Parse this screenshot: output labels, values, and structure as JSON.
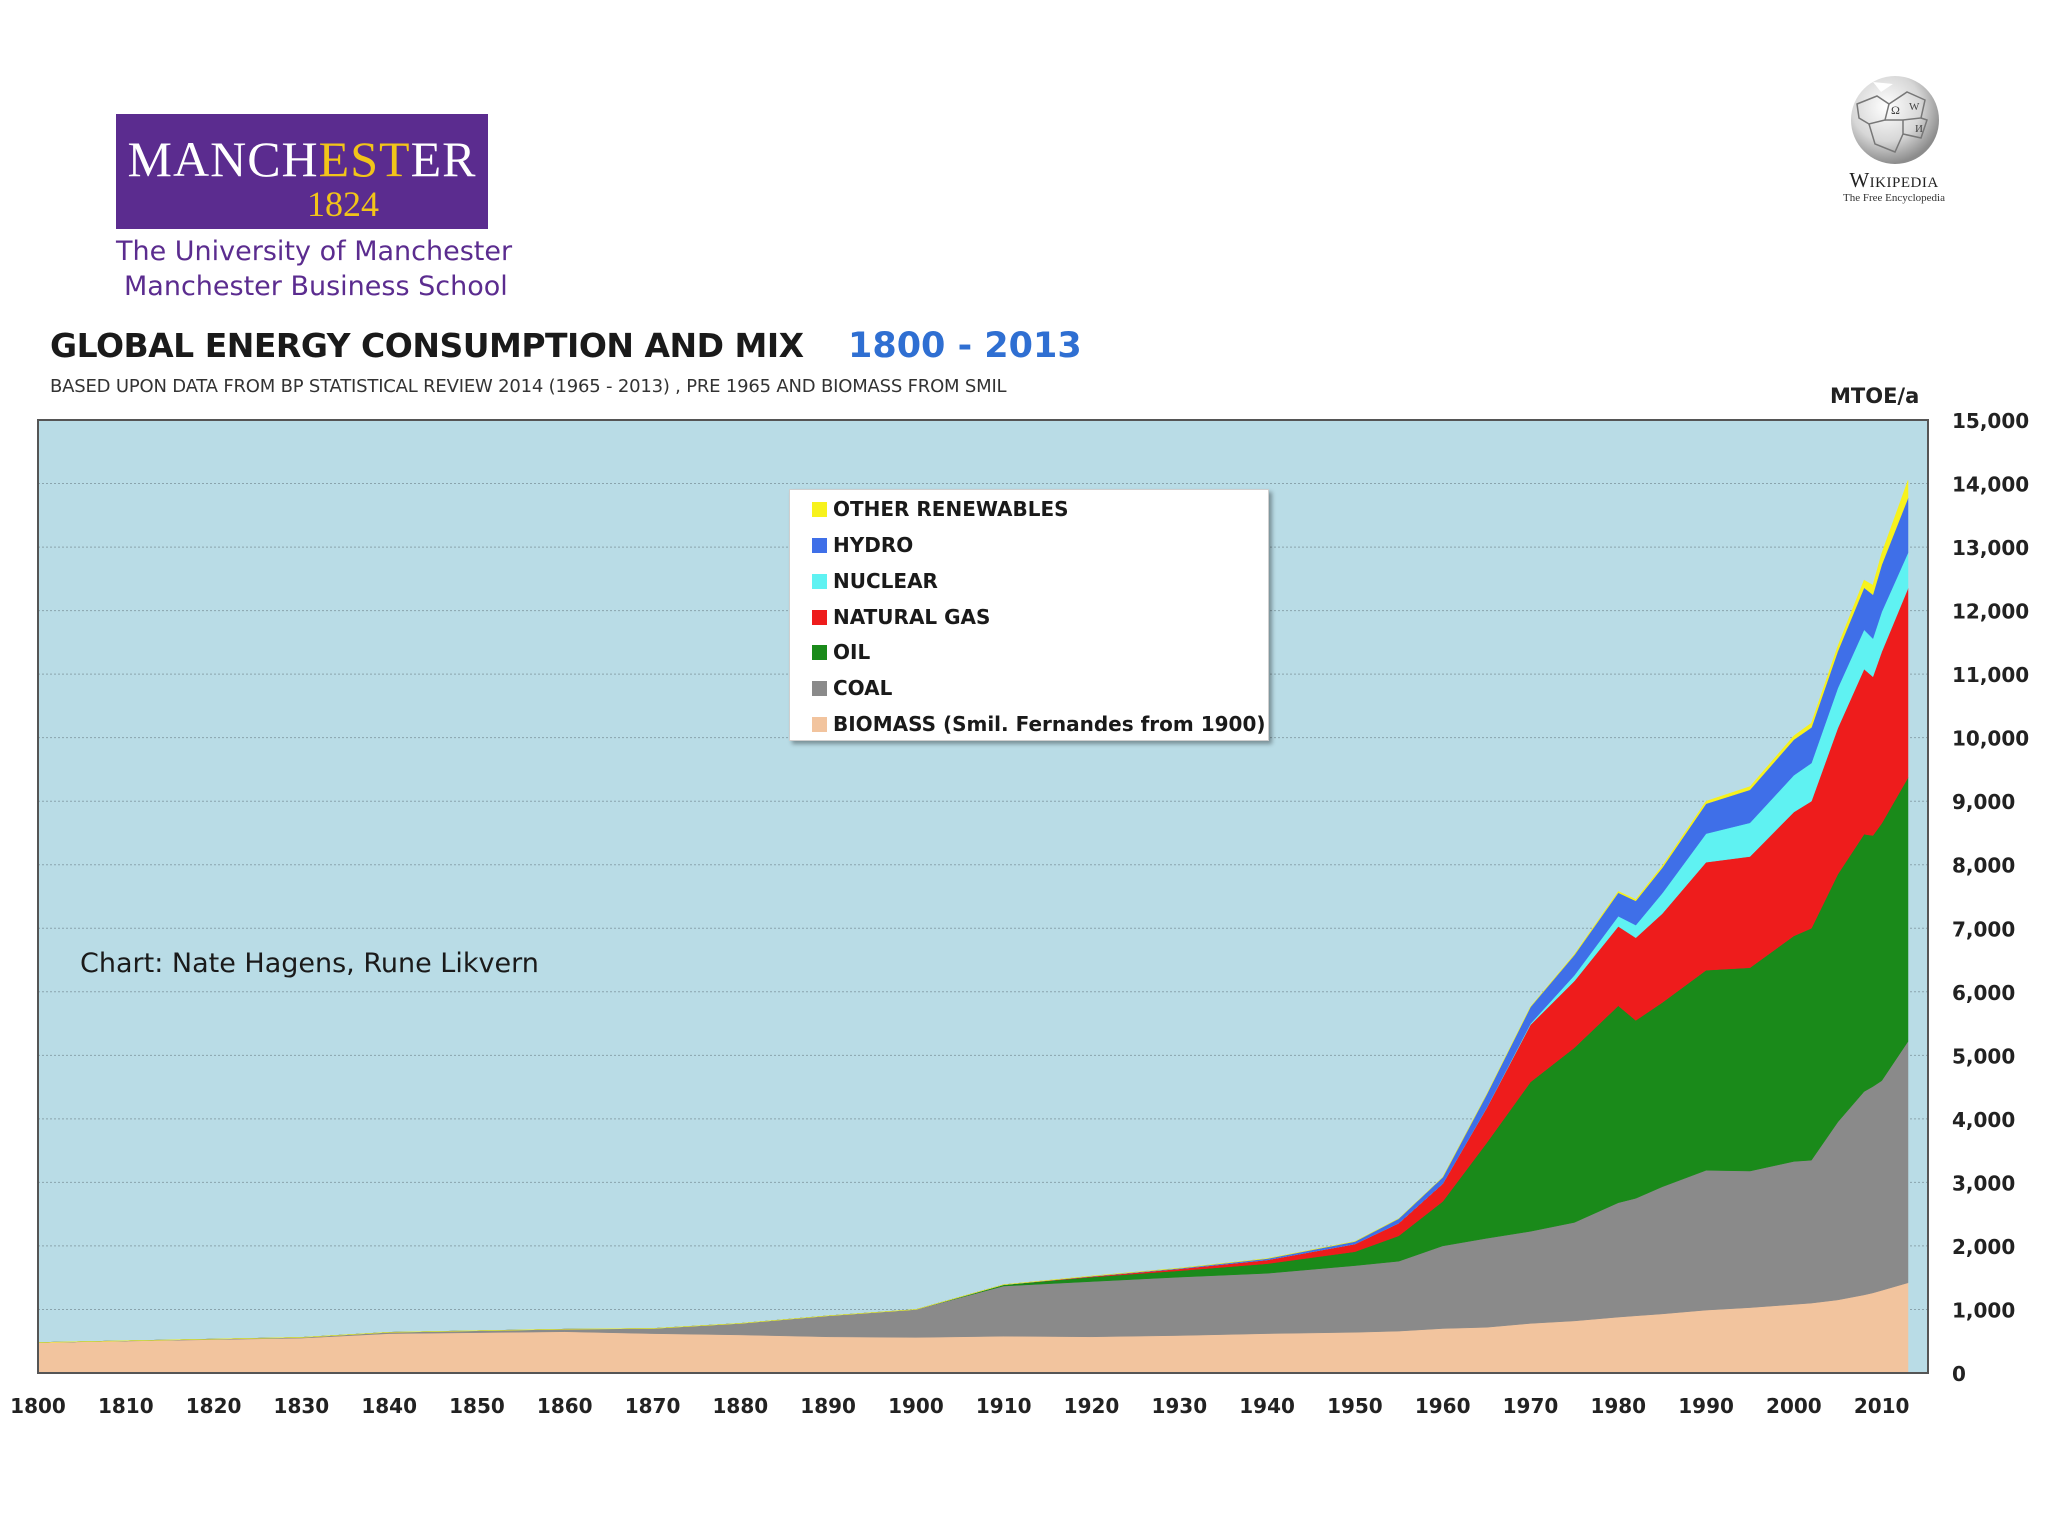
{
  "logos": {
    "manchester": {
      "wordmark_parts": [
        "MANCH",
        "EST",
        "ER"
      ],
      "year": "1824",
      "line1": "The University of Manchester",
      "line2": "Manchester Business School"
    },
    "wikipedia": {
      "name": "Wikipedia",
      "tagline": "The Free Encyclopedia"
    }
  },
  "chart_data": {
    "type": "area",
    "stacked": true,
    "title": "GLOBAL ENERGY CONSUMPTION AND MIX",
    "title_years": "1800 - 2013",
    "subtitle": "BASED UPON DATA FROM BP STATISTICAL REVIEW 2014 (1965 - 2013) , PRE 1965 AND BIOMASS FROM SMIL",
    "ylabel": "MTOE/a",
    "xlabel": "",
    "ylim": [
      0,
      15000
    ],
    "xlim": [
      1800,
      2013
    ],
    "grid": true,
    "legend_position": "top-center",
    "annotation": "Chart: Nate Hagens, Rune Likvern",
    "background_color": "#b9dce6",
    "x_ticks": [
      "1800",
      "1810",
      "1820",
      "1830",
      "1840",
      "1850",
      "1860",
      "1870",
      "1880",
      "1890",
      "1900",
      "1910",
      "1920",
      "1930",
      "1940",
      "1950",
      "1960",
      "1970",
      "1980",
      "1990",
      "2000",
      "2010"
    ],
    "y_ticks": [
      "0",
      "1,000",
      "2,000",
      "3,000",
      "4,000",
      "5,000",
      "6,000",
      "7,000",
      "8,000",
      "9,000",
      "10,000",
      "11,000",
      "12,000",
      "13,000",
      "14,000",
      "15,000"
    ],
    "years": [
      1800,
      1830,
      1840,
      1860,
      1870,
      1880,
      1890,
      1900,
      1910,
      1920,
      1930,
      1940,
      1950,
      1955,
      1960,
      1965,
      1970,
      1975,
      1980,
      1982,
      1985,
      1990,
      1995,
      2000,
      2002,
      2005,
      2008,
      2009,
      2010,
      2013
    ],
    "series": [
      {
        "name": "BIOMASS (Smil. Fernandes from 1900)",
        "color": "#f2c49e",
        "values": [
          480,
          550,
          620,
          650,
          620,
          600,
          570,
          560,
          580,
          570,
          590,
          620,
          640,
          660,
          700,
          720,
          780,
          820,
          880,
          900,
          930,
          990,
          1030,
          1080,
          1100,
          1150,
          1230,
          1260,
          1300,
          1420
        ]
      },
      {
        "name": "COAL",
        "color": "#8a8a8a",
        "values": [
          0,
          10,
          20,
          40,
          80,
          180,
          330,
          440,
          790,
          870,
          920,
          950,
          1050,
          1100,
          1300,
          1400,
          1450,
          1550,
          1800,
          1850,
          2000,
          2200,
          2150,
          2250,
          2250,
          2800,
          3200,
          3250,
          3300,
          3800
        ]
      },
      {
        "name": "OIL",
        "color": "#1a8a1a",
        "values": [
          0,
          0,
          0,
          0,
          0,
          0,
          0,
          0,
          20,
          70,
          100,
          150,
          220,
          400,
          700,
          1500,
          2350,
          2750,
          3100,
          2800,
          2900,
          3150,
          3200,
          3550,
          3650,
          3900,
          4050,
          3950,
          4050,
          4150
        ]
      },
      {
        "name": "NATURAL GAS",
        "color": "#ee1c1c",
        "values": [
          0,
          0,
          0,
          0,
          0,
          0,
          0,
          0,
          0,
          10,
          30,
          60,
          120,
          200,
          280,
          550,
          900,
          1050,
          1250,
          1300,
          1400,
          1700,
          1750,
          1950,
          2000,
          2300,
          2600,
          2500,
          2700,
          2980
        ]
      },
      {
        "name": "NUCLEAR",
        "color": "#5ff2f2",
        "values": [
          0,
          0,
          0,
          0,
          0,
          0,
          0,
          0,
          0,
          0,
          0,
          0,
          0,
          0,
          0,
          2,
          20,
          90,
          160,
          200,
          320,
          450,
          530,
          580,
          600,
          630,
          620,
          600,
          630,
          560
        ]
      },
      {
        "name": "HYDRO",
        "color": "#3f6fe8",
        "values": [
          0,
          0,
          0,
          0,
          0,
          0,
          0,
          0,
          0,
          5,
          10,
          20,
          40,
          70,
          100,
          210,
          260,
          320,
          370,
          380,
          400,
          470,
          520,
          560,
          560,
          580,
          660,
          690,
          740,
          860
        ]
      },
      {
        "name": "OTHER RENEWABLES",
        "color": "#f7f21c",
        "values": [
          0,
          0,
          0,
          0,
          0,
          0,
          0,
          0,
          0,
          0,
          0,
          0,
          0,
          0,
          0,
          0,
          5,
          10,
          20,
          25,
          30,
          40,
          50,
          60,
          70,
          80,
          120,
          150,
          180,
          280
        ]
      }
    ]
  }
}
